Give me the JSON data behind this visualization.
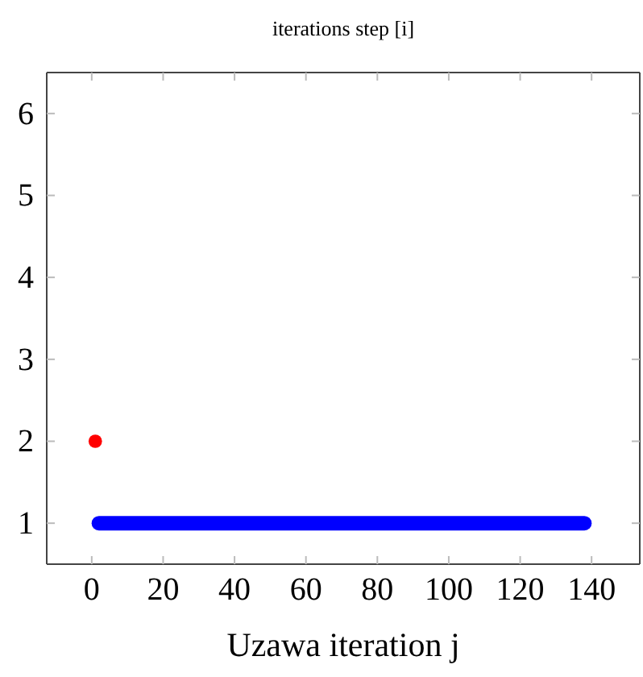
{
  "chart_data": {
    "type": "scatter",
    "title": "iterations step [i]",
    "xlabel": "Uzawa iteration j",
    "marker": "circle",
    "grid": false,
    "xlim": [
      -12.6,
      153.5
    ],
    "xticks": [
      0,
      20,
      40,
      60,
      80,
      100,
      120,
      140
    ],
    "ylim": [
      0.5,
      6.5
    ],
    "yticks": [
      1,
      2,
      3,
      4,
      5,
      6
    ],
    "series": [
      {
        "color": "#ff0000",
        "x": [
          1
        ],
        "values": [
          2
        ]
      },
      {
        "type": "line",
        "marker": "none",
        "color": "#0000ff",
        "x": [
          2,
          138
        ],
        "values": [
          1,
          1
        ]
      }
    ]
  }
}
